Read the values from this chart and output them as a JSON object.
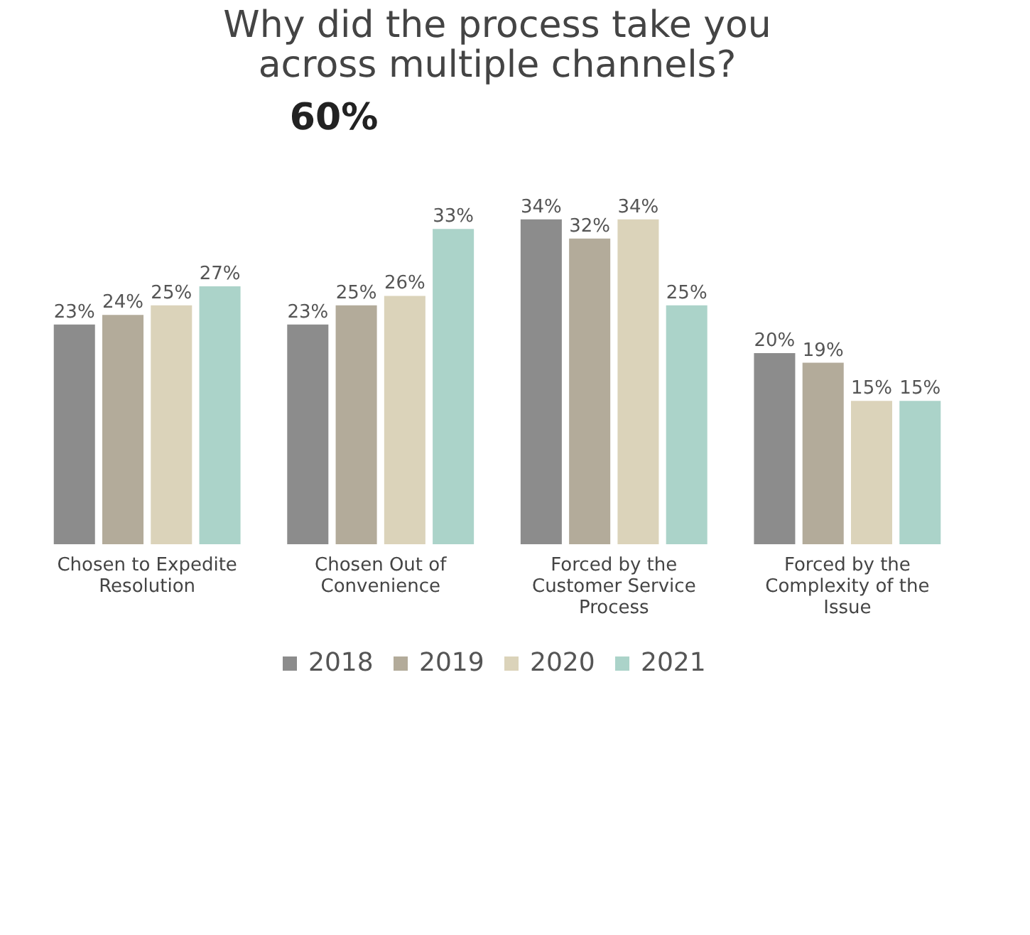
{
  "chart_data": {
    "type": "bar",
    "title": "Why did the process take you across multiple channels?",
    "categories": [
      "Chosen to Expedite Resolution",
      "Chosen Out of Convenience",
      "Forced by the Customer Service Process",
      "Forced by the Complexity of the Issue"
    ],
    "series": [
      {
        "name": "2018",
        "color": "#8c8c8c",
        "values": [
          23,
          23,
          34,
          20
        ],
        "value_labels": [
          "23%",
          "23%",
          "34%",
          "20%"
        ]
      },
      {
        "name": "2019",
        "color": "#b3ab9a",
        "values": [
          24,
          25,
          32,
          19
        ],
        "value_labels": [
          "24%",
          "25%",
          "32%",
          "19%"
        ]
      },
      {
        "name": "2020",
        "color": "#dbd3ba",
        "values": [
          25,
          26,
          34,
          15
        ],
        "value_labels": [
          "25%",
          "26%",
          "34%",
          "15%"
        ]
      },
      {
        "name": "2021",
        "color": "#abd3c9",
        "values": [
          27,
          33,
          25,
          15
        ],
        "value_labels": [
          "27%",
          "33%",
          "25%",
          "15%"
        ]
      }
    ],
    "annotations": [
      "60%"
    ],
    "legend": "bottom",
    "grid": false
  }
}
